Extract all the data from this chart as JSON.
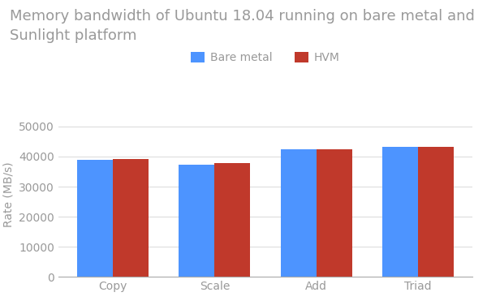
{
  "title": "Memory bandwidth of Ubuntu 18.04 running on bare metal and\nSunlight platform",
  "ylabel": "Rate (MB/s)",
  "categories": [
    "Copy",
    "Scale",
    "Add",
    "Triad"
  ],
  "series": [
    {
      "label": "Bare metal",
      "color": "#4d94ff",
      "values": [
        38800,
        37400,
        42300,
        43200
      ]
    },
    {
      "label": "HVM",
      "color": "#c0392b",
      "values": [
        39100,
        37700,
        42300,
        43300
      ]
    }
  ],
  "ylim": [
    0,
    55000
  ],
  "yticks": [
    0,
    10000,
    20000,
    30000,
    40000,
    50000
  ],
  "bar_width": 0.35,
  "title_fontsize": 13,
  "tick_fontsize": 10,
  "label_fontsize": 10,
  "legend_fontsize": 10,
  "title_color": "#999999",
  "tick_color": "#999999",
  "label_color": "#999999",
  "background_color": "#ffffff",
  "grid_color": "#dddddd"
}
